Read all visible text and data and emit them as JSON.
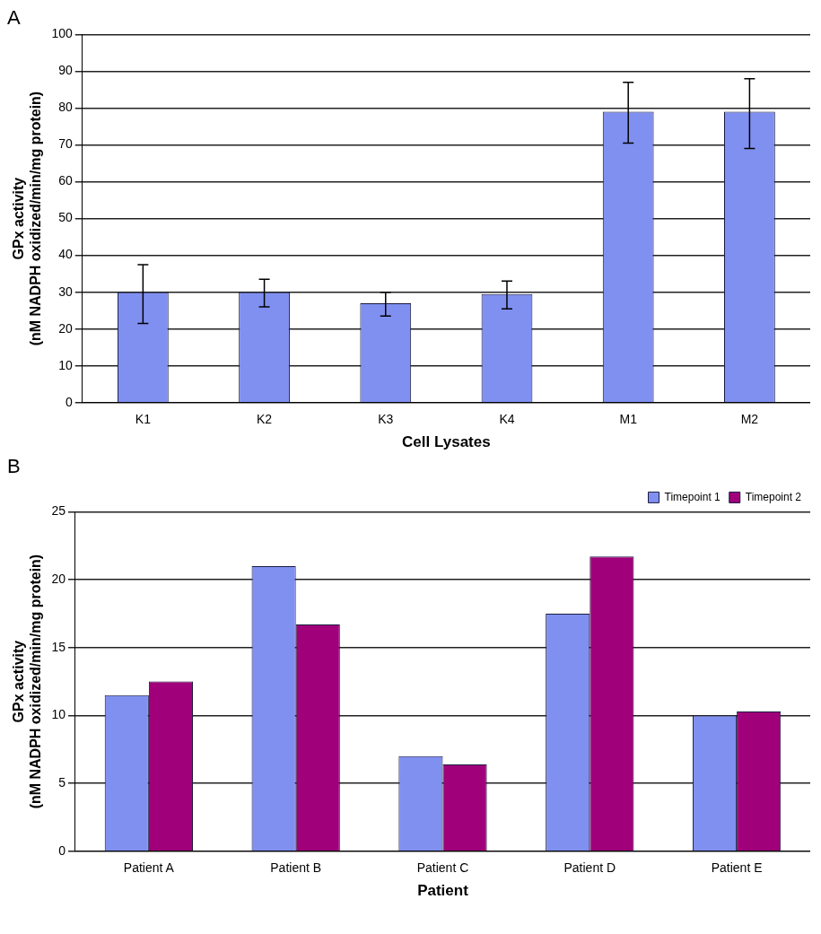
{
  "chart_data": [
    {
      "type": "bar",
      "title": "A",
      "xlabel": "Cell Lysates",
      "ylabel": "GPx activity\n(nM NADPH oxidized/min/mg protein)",
      "categories": [
        "K1",
        "K2",
        "K3",
        "K4",
        "M1",
        "M2"
      ],
      "series": [
        {
          "color": "#8090f0",
          "values": [
            30,
            30,
            27,
            29.5,
            79,
            79
          ],
          "errors": [
            [
              21.5,
              37.5
            ],
            [
              26,
              33.5
            ],
            [
              23.5,
              30
            ],
            [
              25.5,
              33
            ],
            [
              70.5,
              87
            ],
            [
              69,
              88
            ]
          ]
        }
      ],
      "ylim": [
        0,
        100
      ],
      "yticks": [
        0,
        10,
        20,
        30,
        40,
        50,
        60,
        70,
        80,
        90,
        100
      ],
      "grid": "y",
      "legend": false
    },
    {
      "type": "bar",
      "title": "B",
      "xlabel": "Patient",
      "ylabel": "GPx activity\n(nM NADPH oxidized/min/mg protein)",
      "categories": [
        "Patient A",
        "Patient B",
        "Patient C",
        "Patient D",
        "Patient E"
      ],
      "series": [
        {
          "name": "Timepoint 1",
          "color": "#8090f0",
          "values": [
            11.5,
            21,
            7,
            17.5,
            10
          ]
        },
        {
          "name": "Timepoint 2",
          "color": "#a0007a",
          "values": [
            12.5,
            16.7,
            6.4,
            21.7,
            10.3
          ]
        }
      ],
      "ylim": [
        0,
        25
      ],
      "yticks": [
        0,
        5,
        10,
        15,
        20,
        25
      ],
      "grid": "y",
      "legend": "top right"
    }
  ]
}
